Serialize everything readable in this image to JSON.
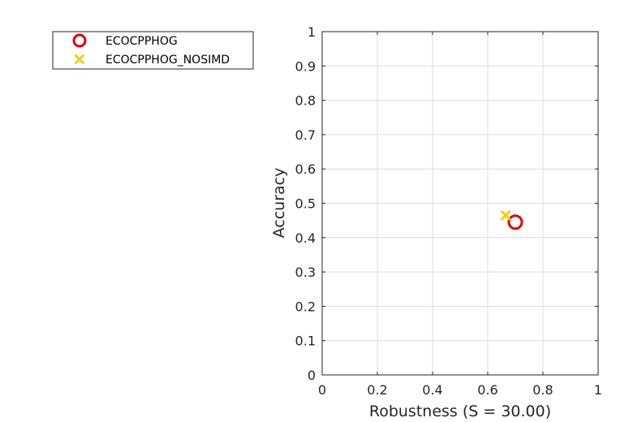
{
  "chart_data": {
    "type": "scatter",
    "xlabel": "Robustness (S = 30.00)",
    "ylabel": "Accuracy",
    "xlim": [
      0,
      1
    ],
    "ylim": [
      0,
      1
    ],
    "xticks": [
      0,
      0.2,
      0.4,
      0.6,
      0.8,
      1
    ],
    "xtick_labels": [
      "0",
      "0.2",
      "0.4",
      "0.6",
      "0.8",
      "1"
    ],
    "yticks": [
      0,
      0.1,
      0.2,
      0.3,
      0.4,
      0.5,
      0.6,
      0.7,
      0.8,
      0.9,
      1
    ],
    "ytick_labels": [
      "0",
      "0.1",
      "0.2",
      "0.3",
      "0.4",
      "0.5",
      "0.6",
      "0.7",
      "0.8",
      "0.9",
      "1"
    ],
    "grid": true,
    "legend_position": "outside-top-left",
    "series": [
      {
        "name": "ECOCPPHOG",
        "marker": "circle",
        "color": "#e60000",
        "x": [
          0.7
        ],
        "y": [
          0.445
        ]
      },
      {
        "name": "ECOCPPHOG_NOSIMD",
        "marker": "x",
        "color": "#f2d000",
        "x": [
          0.665
        ],
        "y": [
          0.465
        ]
      }
    ]
  }
}
